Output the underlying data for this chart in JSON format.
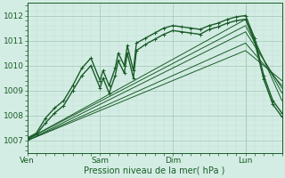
{
  "bg_color": "#d4ede4",
  "grid_color_major": "#a8ccbc",
  "grid_color_minor": "#c0ddd2",
  "line_color": "#1a5c28",
  "xlabel": "Pression niveau de la mer( hPa )",
  "xtick_labels": [
    "Ven",
    "Sam",
    "Dim",
    "Lun"
  ],
  "xtick_positions": [
    0,
    48,
    96,
    144
  ],
  "ylim": [
    1006.5,
    1012.5
  ],
  "yticks": [
    1007,
    1008,
    1009,
    1010,
    1011,
    1012
  ],
  "total_hours": 168,
  "lun_x": 144,
  "series": [
    {
      "x": [
        0,
        6,
        12,
        18,
        24,
        30,
        36,
        42,
        48,
        50,
        54,
        58,
        60,
        64,
        66,
        70,
        72,
        78,
        84,
        90,
        96,
        102,
        108,
        114,
        120,
        126,
        132,
        138,
        144,
        150,
        156,
        162,
        168
      ],
      "y": [
        1007.1,
        1007.3,
        1007.9,
        1008.3,
        1008.6,
        1009.2,
        1009.9,
        1010.3,
        1009.4,
        1009.8,
        1009.2,
        1009.9,
        1010.5,
        1010.0,
        1010.8,
        1009.8,
        1010.9,
        1011.1,
        1011.3,
        1011.5,
        1011.6,
        1011.55,
        1011.5,
        1011.45,
        1011.6,
        1011.7,
        1011.85,
        1011.95,
        1012.0,
        1011.1,
        1009.6,
        1008.6,
        1008.1
      ],
      "marker": true,
      "lw": 1.0
    },
    {
      "x": [
        0,
        6,
        12,
        18,
        24,
        30,
        36,
        42,
        48,
        50,
        54,
        58,
        60,
        64,
        66,
        70,
        72,
        78,
        84,
        90,
        96,
        102,
        108,
        114,
        120,
        126,
        132,
        138,
        144,
        150,
        156,
        162,
        168
      ],
      "y": [
        1007.05,
        1007.25,
        1007.7,
        1008.1,
        1008.4,
        1009.0,
        1009.6,
        1010.0,
        1009.1,
        1009.5,
        1008.9,
        1009.6,
        1010.2,
        1009.7,
        1010.5,
        1009.5,
        1010.6,
        1010.85,
        1011.05,
        1011.25,
        1011.4,
        1011.35,
        1011.3,
        1011.25,
        1011.45,
        1011.55,
        1011.7,
        1011.8,
        1011.85,
        1010.95,
        1009.45,
        1008.45,
        1007.95
      ],
      "marker": true,
      "lw": 1.0
    },
    {
      "x": [
        0,
        144,
        168
      ],
      "y": [
        1007.05,
        1011.85,
        1008.6
      ],
      "marker": false,
      "lw": 0.7
    },
    {
      "x": [
        0,
        144,
        168
      ],
      "y": [
        1007.05,
        1011.6,
        1008.9
      ],
      "marker": false,
      "lw": 0.7
    },
    {
      "x": [
        0,
        144,
        168
      ],
      "y": [
        1007.0,
        1011.35,
        1009.1
      ],
      "marker": false,
      "lw": 0.7
    },
    {
      "x": [
        0,
        144,
        168
      ],
      "y": [
        1007.0,
        1010.9,
        1009.2
      ],
      "marker": false,
      "lw": 0.7
    },
    {
      "x": [
        0,
        144,
        168
      ],
      "y": [
        1007.0,
        1010.6,
        1009.4
      ],
      "marker": false,
      "lw": 0.7
    }
  ]
}
